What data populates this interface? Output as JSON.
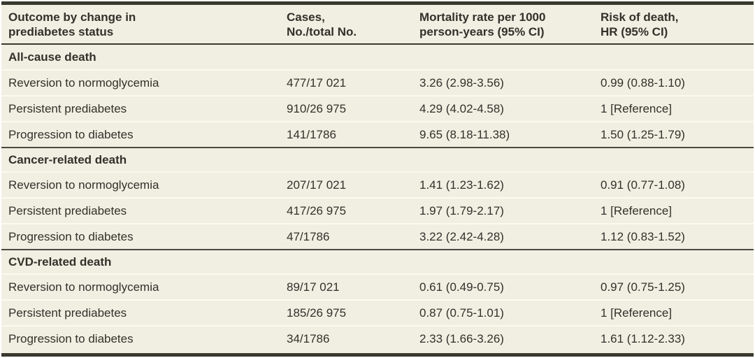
{
  "table": {
    "columns": [
      {
        "line1": "Outcome by change in",
        "line2": "prediabetes status"
      },
      {
        "line1": "Cases,",
        "line2": "No./total No."
      },
      {
        "line1": "Mortality rate per 1000",
        "line2": "person-years (95% CI)"
      },
      {
        "line1": "Risk of death,",
        "line2": "HR (95% CI)"
      }
    ],
    "sections": [
      {
        "title": "All-cause death",
        "rows": [
          {
            "label": "Reversion to normoglycemia",
            "cases": "477/17 021",
            "mortality": "3.26 (2.98-3.56)",
            "hr": "0.99 (0.88-1.10)"
          },
          {
            "label": "Persistent prediabetes",
            "cases": "910/26 975",
            "mortality": "4.29 (4.02-4.58)",
            "hr": "1 [Reference]"
          },
          {
            "label": "Progression to diabetes",
            "cases": "141/1786",
            "mortality": "9.65 (8.18-11.38)",
            "hr": "1.50 (1.25-1.79)"
          }
        ]
      },
      {
        "title": "Cancer-related death",
        "rows": [
          {
            "label": "Reversion to normoglycemia",
            "cases": "207/17 021",
            "mortality": "1.41 (1.23-1.62)",
            "hr": "0.91 (0.77-1.08)"
          },
          {
            "label": "Persistent prediabetes",
            "cases": "417/26 975",
            "mortality": "1.97 (1.79-2.17)",
            "hr": "1 [Reference]"
          },
          {
            "label": "Progression to diabetes",
            "cases": "47/1786",
            "mortality": "3.22 (2.42-4.28)",
            "hr": "1.12 (0.83-1.52)"
          }
        ]
      },
      {
        "title": "CVD-related death",
        "rows": [
          {
            "label": "Reversion to normoglycemia",
            "cases": "89/17 021",
            "mortality": "0.61 (0.49-0.75)",
            "hr": "0.97 (0.75-1.25)"
          },
          {
            "label": "Persistent prediabetes",
            "cases": "185/26 975",
            "mortality": "0.87 (0.75-1.01)",
            "hr": "1 [Reference]"
          },
          {
            "label": "Progression to diabetes",
            "cases": "34/1786",
            "mortality": "2.33 (1.66-3.26)",
            "hr": "1.61 (1.12-2.33)"
          }
        ]
      }
    ]
  },
  "colors": {
    "background": "#f1efe2",
    "rule_dark": "#3a392f",
    "section_rule": "#4a4940",
    "row_separator": "#fbfaef",
    "text": "#32312a"
  }
}
